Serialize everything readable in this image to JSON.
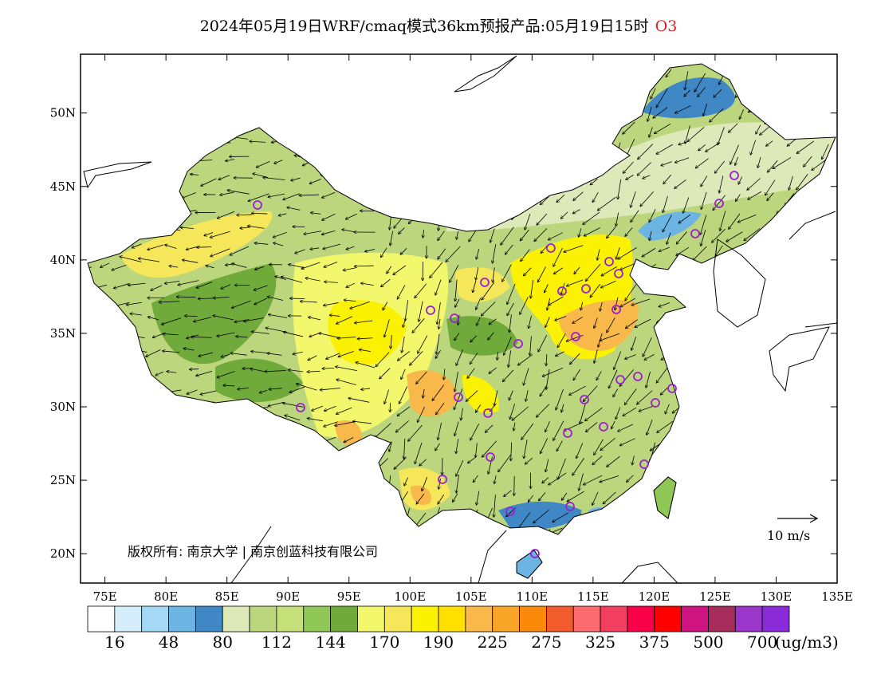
{
  "title": {
    "main": "2024年05月19日WRF/cmaq模式36km预报产品:05月19日15时",
    "species": "O3"
  },
  "map": {
    "lon_range": [
      73,
      135
    ],
    "lat_range": [
      18,
      54
    ],
    "lon_ticks": [
      "75E",
      "80E",
      "85E",
      "90E",
      "95E",
      "100E",
      "105E",
      "110E",
      "115E",
      "120E",
      "125E",
      "130E",
      "135E"
    ],
    "lat_ticks": [
      "20N",
      "25N",
      "30N",
      "35N",
      "40N",
      "45N",
      "50N"
    ],
    "copyright": "版权所有: 南京大学 | 南京创蓝科技有限公司",
    "vector_scale": "10 m/s"
  },
  "colorbar": {
    "colors": [
      "#ffffff",
      "#d6eefb",
      "#a3d9f5",
      "#6cb4e2",
      "#3f88c5",
      "#dde9b8",
      "#bcd67e",
      "#c6e07a",
      "#8fc857",
      "#6faa3a",
      "#f2f76b",
      "#f5e65a",
      "#fbf203",
      "#ffe000",
      "#f8b84a",
      "#f8a426",
      "#fb8a0b",
      "#f25c2c",
      "#fb6a6f",
      "#f23f5f",
      "#fa0049",
      "#ff0000",
      "#cf1380",
      "#a52c5b",
      "#9a36c9",
      "#8a2bd9"
    ],
    "labels": [
      "16",
      "48",
      "80",
      "112",
      "144",
      "170",
      "190",
      "225",
      "275",
      "325",
      "375",
      "500",
      "700"
    ],
    "unit": "(ug/m3)"
  },
  "cities_hint": "O3 monitoring city markers"
}
